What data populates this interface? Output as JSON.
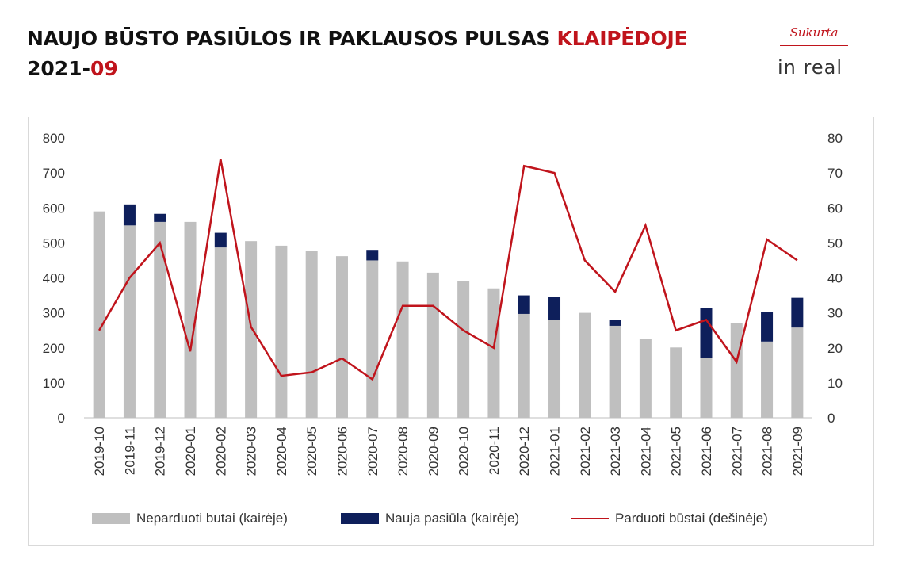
{
  "header": {
    "title_main": "NAUJO BŪSTO PASIŪLOS IR PAKLAUSOS PULSAS ",
    "title_city": "KLAIPĖDOJE",
    "period_year": "2021-",
    "period_month": "09"
  },
  "logo": {
    "top": "Sukurta",
    "bottom": "in real"
  },
  "colors": {
    "unsold": "#bfbfbf",
    "new_supply": "#0e1f5b",
    "sold": "#c0141c",
    "accent": "#c0141c"
  },
  "chart_data": {
    "type": "bar",
    "title": "",
    "categories": [
      "2019-10",
      "2019-11",
      "2019-12",
      "2020-01",
      "2020-02",
      "2020-03",
      "2020-04",
      "2020-05",
      "2020-06",
      "2020-07",
      "2020-08",
      "2020-09",
      "2020-10",
      "2020-11",
      "2020-12",
      "2021-01",
      "2021-02",
      "2021-03",
      "2021-04",
      "2021-05",
      "2021-06",
      "2021-07",
      "2021-08",
      "2021-09"
    ],
    "y_left": {
      "range": [
        0,
        800
      ],
      "ticks": [
        "0",
        "100",
        "200",
        "300",
        "400",
        "500",
        "600",
        "700",
        "800"
      ]
    },
    "y_right": {
      "range": [
        0,
        80
      ],
      "ticks": [
        "0",
        "10",
        "20",
        "30",
        "40",
        "50",
        "60",
        "70",
        "80"
      ]
    },
    "grid": false,
    "legend_position": "bottom",
    "series": [
      {
        "name": "Neparduoti butai (kairėje)",
        "type": "bar",
        "axis": "left",
        "stack": "s",
        "values": [
          590,
          550,
          560,
          560,
          487,
          505,
          492,
          478,
          462,
          450,
          447,
          415,
          390,
          370,
          297,
          280,
          300,
          263,
          226,
          201,
          172,
          270,
          218,
          258
        ]
      },
      {
        "name": "Nauja pasiūla (kairėje)",
        "type": "bar",
        "axis": "left",
        "stack": "s",
        "values": [
          0,
          60,
          23,
          0,
          42,
          0,
          0,
          0,
          0,
          30,
          0,
          0,
          0,
          0,
          53,
          65,
          0,
          17,
          0,
          0,
          142,
          0,
          85,
          85
        ]
      },
      {
        "name": "Parduoti būstai (dešinėje)",
        "type": "line",
        "axis": "right",
        "values": [
          25,
          40,
          50,
          19,
          74,
          26,
          12,
          13,
          17,
          11,
          32,
          32,
          25,
          20,
          72,
          70,
          45,
          36,
          55,
          25,
          28,
          16,
          51,
          45
        ]
      }
    ]
  }
}
